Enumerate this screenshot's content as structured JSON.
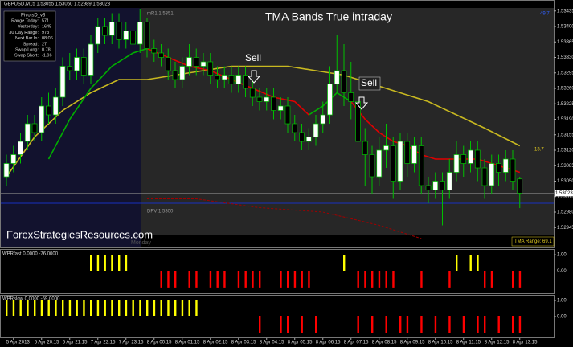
{
  "chart_data": [
    {
      "type": "candlestick",
      "title": "TMA Bands True intraday",
      "header": "GBPUSD,M15 1.53055 1.53060 1.52989 1.53023",
      "categories": [
        null,
        "5 Apr 2013",
        null,
        null,
        null,
        "5 Apr 20:15",
        null,
        null,
        null,
        "5 Apr 21:15",
        null,
        null,
        null,
        "7 Apr 22:15",
        null,
        null,
        null,
        "7 Apr 23:15",
        null,
        null,
        null,
        "8 Apr 00:15",
        null,
        null,
        null,
        "8 Apr 01:15",
        null,
        null,
        null,
        "8 Apr 02:15",
        null,
        null,
        null,
        "8 Apr 03:15",
        null,
        null,
        null,
        "8 Apr 04:15",
        null,
        null,
        null,
        "8 Apr 05:15",
        null,
        null,
        null,
        "8 Apr 06:15",
        null,
        null,
        null,
        "8 Apr 07:15",
        null,
        null,
        null,
        "8 Apr 08:15",
        null,
        null,
        null,
        "8 Apr 09:15",
        null,
        null,
        null,
        "8 Apr 10:15",
        null,
        null,
        null,
        "8 Apr 11:15",
        null,
        null,
        null,
        "8 Apr 12:15",
        null,
        null,
        null,
        "8 Apr 13:15"
      ],
      "open": [
        1.5306,
        1.5309,
        1.5311,
        1.5314,
        1.5318,
        1.5316,
        1.5322,
        1.532,
        1.5324,
        1.5331,
        1.533,
        1.5333,
        1.5329,
        1.5336,
        1.534,
        1.5338,
        1.5341,
        1.5337,
        1.5339,
        1.5336,
        1.5341,
        1.5335,
        1.5334,
        1.5333,
        1.533,
        1.5328,
        1.5331,
        1.5333,
        1.5331,
        1.5332,
        1.5329,
        1.5328,
        1.5329,
        1.5327,
        1.5329,
        1.5326,
        1.5324,
        1.5323,
        1.5324,
        1.5321,
        1.5322,
        1.5318,
        1.5316,
        1.5314,
        1.5315,
        1.5318,
        1.532,
        1.5327,
        1.533,
        1.5325,
        1.5323,
        1.5314,
        1.5311,
        1.5306,
        1.5312,
        1.5313,
        1.5305,
        1.5314,
        1.5309,
        1.5313,
        1.5304,
        1.5303,
        1.5305,
        1.5303,
        1.5307,
        1.5311,
        1.5309,
        1.5312,
        1.5308,
        1.5304,
        1.5309,
        1.5307,
        1.531,
        1.53055
      ],
      "high": [
        1.5311,
        1.5313,
        1.5316,
        1.532,
        1.532,
        1.5324,
        1.5325,
        1.5326,
        1.5333,
        1.5334,
        1.5335,
        1.5335,
        1.5338,
        1.5342,
        1.5342,
        1.5343,
        1.5343,
        1.5341,
        1.5341,
        1.5344,
        1.5342,
        1.5337,
        1.5336,
        1.5335,
        1.5332,
        1.5333,
        1.5336,
        1.5335,
        1.5334,
        1.5334,
        1.5331,
        1.5331,
        1.5331,
        1.5331,
        1.5331,
        1.5328,
        1.5326,
        1.5326,
        1.5326,
        1.5324,
        1.5324,
        1.532,
        1.5318,
        1.5317,
        1.532,
        1.5323,
        1.5331,
        1.5338,
        1.5336,
        1.5332,
        1.5325,
        1.5317,
        1.5313,
        1.5315,
        1.5318,
        1.5315,
        1.5316,
        1.5316,
        1.5315,
        1.5315,
        1.5306,
        1.5307,
        1.5307,
        1.531,
        1.5314,
        1.5313,
        1.5314,
        1.5314,
        1.531,
        1.5311,
        1.5311,
        1.5312,
        1.5312,
        1.5306
      ],
      "low": [
        1.5304,
        1.5307,
        1.5309,
        1.5312,
        1.5314,
        1.5314,
        1.5318,
        1.5318,
        1.5322,
        1.5328,
        1.5328,
        1.5327,
        1.5327,
        1.5334,
        1.5336,
        1.5336,
        1.5335,
        1.5335,
        1.5334,
        1.5334,
        1.5333,
        1.5332,
        1.5331,
        1.5328,
        1.5326,
        1.5326,
        1.5329,
        1.5329,
        1.5329,
        1.5327,
        1.5326,
        1.5326,
        1.5325,
        1.5325,
        1.5324,
        1.5322,
        1.5321,
        1.5321,
        1.5319,
        1.5319,
        1.5316,
        1.5314,
        1.5312,
        1.5312,
        1.5313,
        1.5316,
        1.5318,
        1.5325,
        1.5322,
        1.5319,
        1.5312,
        1.5304,
        1.5302,
        1.5304,
        1.5308,
        1.5301,
        1.5303,
        1.5306,
        1.5307,
        1.5302,
        1.53,
        1.5301,
        1.5295,
        1.5301,
        1.5305,
        1.5306,
        1.5307,
        1.5305,
        1.5301,
        1.5302,
        1.5304,
        1.5305,
        1.5303,
        1.52989
      ],
      "close": [
        1.5309,
        1.5311,
        1.5314,
        1.5318,
        1.5316,
        1.5322,
        1.532,
        1.5324,
        1.5331,
        1.533,
        1.5333,
        1.5329,
        1.5336,
        1.534,
        1.5338,
        1.5341,
        1.5337,
        1.5339,
        1.5336,
        1.5341,
        1.5335,
        1.5334,
        1.5333,
        1.533,
        1.5328,
        1.5331,
        1.5333,
        1.5331,
        1.5332,
        1.5329,
        1.5328,
        1.5329,
        1.5327,
        1.5329,
        1.5326,
        1.5324,
        1.5323,
        1.5324,
        1.5321,
        1.5322,
        1.5318,
        1.5316,
        1.5314,
        1.5315,
        1.5318,
        1.532,
        1.5327,
        1.533,
        1.5325,
        1.5323,
        1.5314,
        1.5311,
        1.5306,
        1.5312,
        1.5313,
        1.5305,
        1.5314,
        1.5309,
        1.5313,
        1.5304,
        1.5303,
        1.5305,
        1.5303,
        1.5307,
        1.5311,
        1.5309,
        1.5312,
        1.5308,
        1.5304,
        1.5309,
        1.5307,
        1.531,
        1.5305,
        1.53023
      ],
      "up_color": "#ffffff",
      "down_color": "#000000",
      "wick_color": "#00c000",
      "ylim": [
        1.529,
        1.5346
      ],
      "yticks": [
        1.53435,
        {
          "value": 1.534,
          "label": "1.53400"
        },
        1.53365,
        {
          "value": 1.5333,
          "label": "1.53330"
        },
        1.53295,
        {
          "value": 1.5326,
          "label": "1.53260"
        },
        1.53225,
        {
          "value": 1.5319,
          "label": "1.53190"
        },
        1.53155,
        {
          "value": 1.5312,
          "label": "1.53120"
        },
        1.53085,
        {
          "value": 1.5305,
          "label": "1.53050"
        },
        1.53015,
        {
          "value": 1.5298,
          "label": "1.52980"
        },
        1.52945
      ],
      "last_price": 1.53023,
      "lines": [
        {
          "color": "#c8b820",
          "x": [
            0,
            4,
            8,
            12,
            16,
            20,
            24,
            28,
            32,
            36,
            40,
            44,
            48,
            52,
            56,
            60,
            64,
            68,
            73
          ],
          "values": [
            1.5306,
            1.5315,
            1.5321,
            1.5325,
            1.5328,
            1.5328,
            1.5329,
            1.533,
            1.5331,
            1.5331,
            1.5331,
            1.533,
            1.5329,
            1.5327,
            1.5325,
            1.5323,
            1.532,
            1.5317,
            1.5313
          ]
        },
        {
          "color": "#00b000",
          "x": [
            6,
            9,
            12,
            15,
            18,
            20
          ],
          "values": [
            1.531,
            1.5319,
            1.5326,
            1.5331,
            1.5334,
            1.5335
          ]
        },
        {
          "color": "#e00000",
          "x": [
            20,
            23,
            26,
            29,
            32,
            35,
            38,
            41,
            43
          ],
          "values": [
            1.5335,
            1.5333,
            1.5331,
            1.533,
            1.5328,
            1.5326,
            1.5324,
            1.5323,
            1.532
          ]
        },
        {
          "color": "#00b000",
          "x": [
            43,
            45,
            47,
            49
          ],
          "values": [
            1.532,
            1.5322,
            1.5325,
            1.5323
          ]
        },
        {
          "color": "#e00000",
          "x": [
            49,
            51,
            53,
            55,
            57,
            59,
            61,
            63,
            65,
            67,
            69,
            71,
            73
          ],
          "values": [
            1.5323,
            1.5319,
            1.5316,
            1.5314,
            1.5313,
            1.5311,
            1.531,
            1.531,
            1.531,
            1.531,
            1.5309,
            1.5308,
            1.5307
          ]
        },
        {
          "color": "#a00000",
          "dashed": true,
          "x": [
            20,
            27,
            36,
            45,
            53,
            59
          ],
          "values": [
            1.5301,
            1.5301,
            1.5299,
            1.5298,
            1.5295,
            1.5292
          ]
        }
      ],
      "annotations": [
        {
          "text": "mR1  1.5351"
        },
        {
          "text": "DPV  1.5300",
          "value": 1.53
        }
      ],
      "sell_signals": [
        "Sell",
        "Sell"
      ],
      "watermark": "ForexStrategiesResources.com",
      "session_label": "Monday",
      "range_label": "TMA Range: 69.1",
      "top_right_value": "49.7",
      "side_value": "13.7",
      "pivot_box": {
        "title": "PivotsD_v3",
        "rows": [
          [
            "Range Today:",
            "571"
          ],
          [
            "Yesterday:",
            "1645"
          ],
          [
            "30 Day Range:",
            "973"
          ],
          [
            "Next Bar In:",
            "08:06"
          ],
          [
            "Spread:",
            "27"
          ],
          [
            "Swap Long:",
            "0.78"
          ],
          [
            "Swap Short:",
            "-1.96"
          ]
        ]
      }
    },
    {
      "type": "bar",
      "title": "WPRfast 0.0000 -76.0000",
      "values": [
        0,
        0,
        0,
        0,
        0,
        0,
        0,
        0,
        0,
        0,
        0,
        0,
        1,
        1,
        1,
        1,
        1,
        1,
        0,
        0,
        0,
        0,
        -1,
        -1,
        -1,
        0,
        -1,
        -1,
        0,
        -1,
        -1,
        -1,
        0,
        -1,
        -1,
        -1,
        -1,
        0,
        0,
        -1,
        -1,
        -1,
        -1,
        -1,
        0,
        0,
        0,
        0,
        1,
        0,
        -1,
        -1,
        -1,
        -1,
        -1,
        -1,
        0,
        0,
        0,
        -1,
        0,
        0,
        0,
        -1,
        1,
        0,
        1,
        1,
        -1,
        -1,
        0,
        0,
        -1,
        -1
      ],
      "up_color": "#ffff00",
      "down_color": "#ff0000",
      "ylim": [
        -1.3,
        1.3
      ],
      "yticks": [
        {
          "value": 1,
          "label": "1.00"
        },
        {
          "value": 0,
          "label": "0.00"
        }
      ]
    },
    {
      "type": "bar",
      "title": "WPRslow 0.0000 -69.0000",
      "values": [
        1,
        1,
        1,
        1,
        1,
        1,
        1,
        1,
        1,
        1,
        1,
        1,
        1,
        1,
        1,
        1,
        1,
        1,
        1,
        1,
        1,
        1,
        1,
        1,
        1,
        1,
        1,
        1,
        0,
        0,
        0,
        0,
        0,
        0,
        0,
        0,
        -1,
        0,
        0,
        -1,
        -1,
        0,
        -1,
        0,
        -1,
        0,
        0,
        0,
        0,
        0,
        -1,
        0,
        -1,
        0,
        -1,
        0,
        -1,
        -1,
        0,
        -1,
        0,
        -1,
        0,
        -1,
        0,
        -1,
        0,
        -1,
        -1,
        0,
        -1,
        0,
        -1,
        -1
      ],
      "up_color": "#ffff00",
      "down_color": "#ff0000",
      "ylim": [
        -1.3,
        1.3
      ],
      "yticks": [
        {
          "value": 1,
          "label": "1.00"
        },
        {
          "value": 0,
          "label": "0.00"
        }
      ]
    }
  ]
}
